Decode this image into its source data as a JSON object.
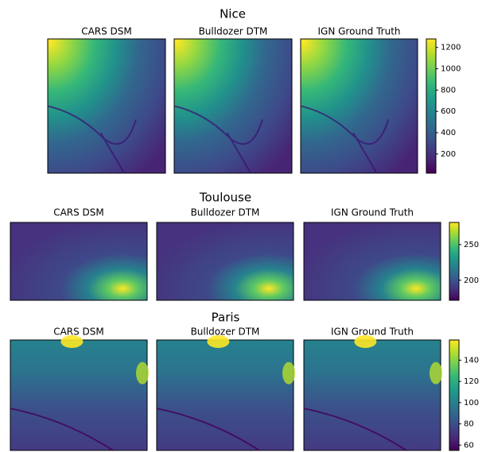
{
  "chart_data": [
    {
      "type": "heatmap",
      "title": "Nice",
      "panel_titles": [
        "CARS DSM",
        "Bulldozer DTM",
        "IGN Ground Truth"
      ],
      "colormap": "viridis",
      "clim": [
        20,
        1280
      ],
      "cticks": [
        200,
        400,
        600,
        800,
        1000,
        1200
      ]
    },
    {
      "type": "heatmap",
      "title": "Toulouse",
      "panel_titles": [
        "CARS DSM",
        "Bulldozer DTM",
        "IGN Ground Truth"
      ],
      "colormap": "viridis",
      "clim": [
        172,
        281
      ],
      "cticks": [
        200,
        250
      ]
    },
    {
      "type": "heatmap",
      "title": "Paris",
      "panel_titles": [
        "CARS DSM",
        "Bulldozer DTM",
        "IGN Ground Truth"
      ],
      "colormap": "viridis",
      "clim": [
        55,
        159
      ],
      "cticks": [
        60,
        80,
        100,
        120,
        140
      ]
    }
  ]
}
